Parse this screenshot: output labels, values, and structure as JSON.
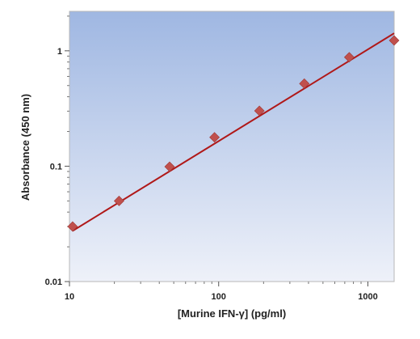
{
  "chart_data": {
    "type": "scatter",
    "title": "",
    "xlabel": "[Murine IFN-γ] (pg/ml)",
    "ylabel": "Absorbance (450 nm)",
    "x_scale": "log",
    "y_scale": "log",
    "xlim": [
      10,
      1500
    ],
    "ylim": [
      0.01,
      2.2
    ],
    "x_ticks": [
      10,
      100,
      1000
    ],
    "x_tick_labels": [
      "10",
      "100",
      "1000"
    ],
    "y_ticks": [
      0.01,
      0.1,
      1
    ],
    "y_tick_labels": [
      "0.01",
      "0.1",
      "1"
    ],
    "grid": false,
    "legend": "none",
    "series": [
      {
        "x": [
          10.5,
          21.5,
          46.9,
          93.8,
          187.5,
          375,
          750,
          1500
        ],
        "y": [
          0.03,
          0.05,
          0.099,
          0.178,
          0.302,
          0.52,
          0.88,
          1.23
        ],
        "marker": "diamond",
        "color": "#c0504d"
      }
    ],
    "fit_line": {
      "type": "power",
      "x": [
        10.5,
        1500
      ],
      "y": [
        0.0275,
        1.42
      ],
      "color": "#b01818"
    },
    "background_gradient": {
      "top": "#9fb7e2",
      "bottom": "#eef1f9"
    }
  }
}
